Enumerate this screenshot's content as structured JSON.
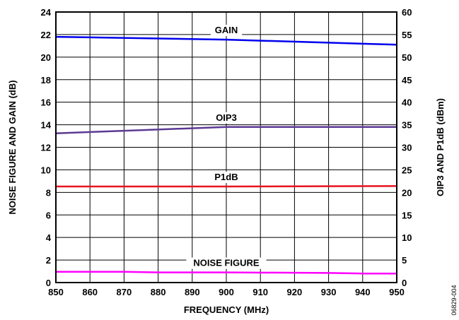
{
  "chart_data": {
    "type": "line",
    "xlabel": "FREQUENCY (MHz)",
    "ylabel": "NOISE FIGURE AND GAIN (dB)",
    "y2label": "OIP3 AND P1dB (dBm)",
    "xlim": [
      850,
      950
    ],
    "ylim": [
      0,
      24
    ],
    "y2lim": [
      0,
      60
    ],
    "grid": true,
    "x_ticks": [
      850,
      860,
      870,
      880,
      890,
      900,
      910,
      920,
      930,
      940,
      950
    ],
    "y_ticks": [
      0,
      2,
      4,
      6,
      8,
      10,
      12,
      14,
      16,
      18,
      20,
      22,
      24
    ],
    "y2_ticks": [
      0,
      5,
      10,
      15,
      20,
      25,
      30,
      35,
      40,
      45,
      50,
      55,
      60
    ],
    "series": [
      {
        "name": "GAIN",
        "axis": "left",
        "color": "#0000ee",
        "x": [
          850,
          900,
          950
        ],
        "values": [
          21.8,
          21.55,
          21.1
        ]
      },
      {
        "name": "OIP3",
        "axis": "right",
        "color": "#5b3a93",
        "x": [
          850,
          875,
          900,
          925,
          950
        ],
        "values": [
          33.1,
          33.8,
          34.5,
          34.5,
          34.5
        ]
      },
      {
        "name": "P1dB",
        "axis": "right",
        "color": "#e8141e",
        "x": [
          850,
          900,
          950
        ],
        "values": [
          21.3,
          21.3,
          21.4
        ]
      },
      {
        "name": "NOISE FIGURE",
        "axis": "left",
        "color": "#ff00ff",
        "x": [
          850,
          870,
          880,
          900,
          930,
          940,
          950
        ],
        "values": [
          0.95,
          0.95,
          0.9,
          0.9,
          0.85,
          0.8,
          0.8
        ]
      }
    ],
    "figure_code": "06829-004"
  }
}
